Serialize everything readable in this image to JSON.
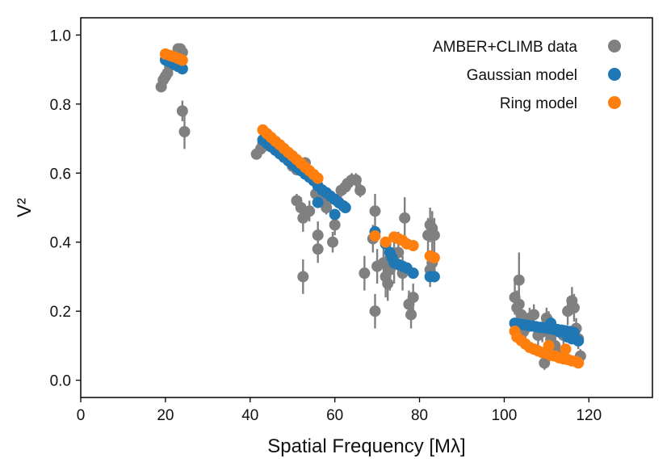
{
  "chart_data": {
    "type": "scatter",
    "title": "",
    "xlabel": "Spatial Frequency [Mλ]",
    "ylabel": "V²",
    "xlim": [
      0,
      135
    ],
    "ylim": [
      -0.05,
      1.05
    ],
    "x_ticks": [
      0,
      20,
      40,
      60,
      80,
      100,
      120
    ],
    "x_tick_labels": [
      "0",
      "20",
      "40",
      "60",
      "80",
      "100",
      "120"
    ],
    "y_ticks": [
      0.0,
      0.2,
      0.4,
      0.6,
      0.8,
      1.0
    ],
    "y_tick_labels": [
      "0.0",
      "0.2",
      "0.4",
      "0.6",
      "0.8",
      "1.0"
    ],
    "grid": false,
    "legend": "top-right",
    "series": [
      {
        "name": "AMBER+CLIMB data",
        "color": "#808080",
        "error_bars": true,
        "points": [
          [
            19,
            0.85,
            0.01
          ],
          [
            19.5,
            0.87,
            0.01
          ],
          [
            20,
            0.88,
            0.01
          ],
          [
            20.5,
            0.89,
            0.01
          ],
          [
            21,
            0.91,
            0.01
          ],
          [
            21.5,
            0.92,
            0.01
          ],
          [
            22,
            0.93,
            0.01
          ],
          [
            22.5,
            0.94,
            0.01
          ],
          [
            23,
            0.96,
            0.015
          ],
          [
            23.5,
            0.96,
            0.015
          ],
          [
            24,
            0.95,
            0.015
          ],
          [
            24,
            0.78,
            0.03
          ],
          [
            24.5,
            0.72,
            0.05
          ],
          [
            41.5,
            0.655,
            0.01
          ],
          [
            42.5,
            0.67,
            0.01
          ],
          [
            43,
            0.685,
            0.01
          ],
          [
            44,
            0.68,
            0.01
          ],
          [
            45,
            0.69,
            0.01
          ],
          [
            46,
            0.68,
            0.01
          ],
          [
            47,
            0.67,
            0.01
          ],
          [
            48,
            0.66,
            0.01
          ],
          [
            49,
            0.64,
            0.01
          ],
          [
            50,
            0.62,
            0.01
          ],
          [
            51,
            0.61,
            0.01
          ],
          [
            51,
            0.52,
            0.02
          ],
          [
            52,
            0.5,
            0.03
          ],
          [
            52.5,
            0.47,
            0.04
          ],
          [
            52.5,
            0.3,
            0.05
          ],
          [
            53,
            0.6,
            0.01
          ],
          [
            53,
            0.63,
            0.01
          ],
          [
            54,
            0.49,
            0.03
          ],
          [
            55,
            0.58,
            0.02
          ],
          [
            55.5,
            0.54,
            0.02
          ],
          [
            56,
            0.42,
            0.04
          ],
          [
            56,
            0.38,
            0.04
          ],
          [
            57,
            0.52,
            0.02
          ],
          [
            58,
            0.5,
            0.02
          ],
          [
            59,
            0.53,
            0.02
          ],
          [
            59.5,
            0.4,
            0.03
          ],
          [
            60,
            0.45,
            0.03
          ],
          [
            60.5,
            0.52,
            0.02
          ],
          [
            61.5,
            0.55,
            0.02
          ],
          [
            62.5,
            0.56,
            0.02
          ],
          [
            63,
            0.57,
            0.02
          ],
          [
            64,
            0.58,
            0.02
          ],
          [
            65,
            0.58,
            0.02
          ],
          [
            66,
            0.55,
            0.02
          ],
          [
            67,
            0.31,
            0.05
          ],
          [
            69,
            0.41,
            0.04
          ],
          [
            69.5,
            0.49,
            0.05
          ],
          [
            69.5,
            0.2,
            0.05
          ],
          [
            70,
            0.33,
            0.05
          ],
          [
            71.5,
            0.34,
            0.06
          ],
          [
            72,
            0.3,
            0.06
          ],
          [
            72.5,
            0.28,
            0.05
          ],
          [
            73,
            0.32,
            0.06
          ],
          [
            74,
            0.34,
            0.06
          ],
          [
            75,
            0.37,
            0.06
          ],
          [
            76,
            0.31,
            0.05
          ],
          [
            76.5,
            0.47,
            0.06
          ],
          [
            77.5,
            0.22,
            0.04
          ],
          [
            78,
            0.19,
            0.04
          ],
          [
            78.5,
            0.24,
            0.04
          ],
          [
            82,
            0.42,
            0.05
          ],
          [
            82.5,
            0.45,
            0.05
          ],
          [
            83,
            0.44,
            0.05
          ],
          [
            83.5,
            0.42,
            0.05
          ],
          [
            82.5,
            0.32,
            0.05
          ],
          [
            83,
            0.34,
            0.05
          ],
          [
            102.5,
            0.24,
            0.05
          ],
          [
            103,
            0.21,
            0.05
          ],
          [
            103.5,
            0.29,
            0.08
          ],
          [
            103.5,
            0.22,
            0.05
          ],
          [
            104,
            0.19,
            0.03
          ],
          [
            104.5,
            0.14,
            0.03
          ],
          [
            105,
            0.15,
            0.03
          ],
          [
            106,
            0.18,
            0.03
          ],
          [
            107,
            0.19,
            0.03
          ],
          [
            108,
            0.13,
            0.03
          ],
          [
            109,
            0.14,
            0.03
          ],
          [
            109.5,
            0.05,
            0.02
          ],
          [
            110,
            0.18,
            0.03
          ],
          [
            110.5,
            0.17,
            0.03
          ],
          [
            111,
            0.12,
            0.03
          ],
          [
            112,
            0.1,
            0.02
          ],
          [
            113,
            0.08,
            0.02
          ],
          [
            114,
            0.13,
            0.03
          ],
          [
            115,
            0.2,
            0.04
          ],
          [
            116,
            0.23,
            0.04
          ],
          [
            116.5,
            0.21,
            0.04
          ],
          [
            117,
            0.15,
            0.03
          ],
          [
            117.5,
            0.12,
            0.03
          ],
          [
            118,
            0.07,
            0.02
          ]
        ]
      },
      {
        "name": "Gaussian model",
        "color": "#1f77b4",
        "error_bars": false,
        "points": [
          [
            20,
            0.928
          ],
          [
            21,
            0.922
          ],
          [
            22,
            0.916
          ],
          [
            23,
            0.909
          ],
          [
            24,
            0.902
          ],
          [
            43,
            0.696
          ],
          [
            44,
            0.686
          ],
          [
            45,
            0.676
          ],
          [
            46,
            0.666
          ],
          [
            47,
            0.656
          ],
          [
            48,
            0.646
          ],
          [
            49,
            0.636
          ],
          [
            50,
            0.626
          ],
          [
            51,
            0.616
          ],
          [
            52,
            0.607
          ],
          [
            53,
            0.597
          ],
          [
            54,
            0.588
          ],
          [
            55,
            0.578
          ],
          [
            56,
            0.563
          ],
          [
            57,
            0.551
          ],
          [
            58,
            0.543
          ],
          [
            59,
            0.533
          ],
          [
            60,
            0.524
          ],
          [
            61,
            0.514
          ],
          [
            62,
            0.505
          ],
          [
            62.5,
            0.5
          ],
          [
            56,
            0.515
          ],
          [
            60,
            0.48
          ],
          [
            69.5,
            0.43
          ],
          [
            72,
            0.395
          ],
          [
            73,
            0.37
          ],
          [
            73.5,
            0.355
          ],
          [
            74,
            0.34
          ],
          [
            75,
            0.335
          ],
          [
            76,
            0.33
          ],
          [
            77,
            0.325
          ],
          [
            78.5,
            0.31
          ],
          [
            82.5,
            0.3
          ],
          [
            83.5,
            0.3
          ],
          [
            102.5,
            0.165
          ],
          [
            103.5,
            0.163
          ],
          [
            104.5,
            0.161
          ],
          [
            105.5,
            0.159
          ],
          [
            106.5,
            0.157
          ],
          [
            107.5,
            0.155
          ],
          [
            108.5,
            0.153
          ],
          [
            109.5,
            0.152
          ],
          [
            110.5,
            0.15
          ],
          [
            111.5,
            0.148
          ],
          [
            112.5,
            0.147
          ],
          [
            113.5,
            0.145
          ],
          [
            114.5,
            0.143
          ],
          [
            115.5,
            0.141
          ],
          [
            116.5,
            0.138
          ],
          [
            117.5,
            0.114
          ],
          [
            116,
            0.12
          ],
          [
            111,
            0.165
          ],
          [
            115,
            0.125
          ],
          [
            113,
            0.14
          ]
        ]
      },
      {
        "name": "Ring model",
        "color": "#ff7f0e",
        "error_bars": false,
        "points": [
          [
            20,
            0.945
          ],
          [
            21,
            0.941
          ],
          [
            22,
            0.937
          ],
          [
            23,
            0.932
          ],
          [
            24,
            0.927
          ],
          [
            43,
            0.725
          ],
          [
            44,
            0.714
          ],
          [
            45,
            0.703
          ],
          [
            46,
            0.692
          ],
          [
            47,
            0.682
          ],
          [
            48,
            0.671
          ],
          [
            49,
            0.66
          ],
          [
            50,
            0.65
          ],
          [
            51,
            0.639
          ],
          [
            52,
            0.628
          ],
          [
            53,
            0.617
          ],
          [
            54,
            0.607
          ],
          [
            55,
            0.596
          ],
          [
            56,
            0.585
          ],
          [
            69.5,
            0.418
          ],
          [
            72,
            0.4
          ],
          [
            74,
            0.415
          ],
          [
            75,
            0.41
          ],
          [
            76,
            0.405
          ],
          [
            77,
            0.395
          ],
          [
            78.5,
            0.39
          ],
          [
            82.5,
            0.36
          ],
          [
            83.5,
            0.355
          ],
          [
            102.5,
            0.142
          ],
          [
            103,
            0.125
          ],
          [
            104,
            0.115
          ],
          [
            105,
            0.105
          ],
          [
            106,
            0.095
          ],
          [
            107,
            0.09
          ],
          [
            108,
            0.085
          ],
          [
            109,
            0.08
          ],
          [
            110,
            0.078
          ],
          [
            111,
            0.072
          ],
          [
            112,
            0.07
          ],
          [
            113,
            0.065
          ],
          [
            114,
            0.062
          ],
          [
            115,
            0.06
          ],
          [
            116,
            0.056
          ],
          [
            117,
            0.054
          ],
          [
            117.5,
            0.05
          ],
          [
            110.5,
            0.1
          ],
          [
            114.5,
            0.09
          ]
        ]
      }
    ]
  }
}
